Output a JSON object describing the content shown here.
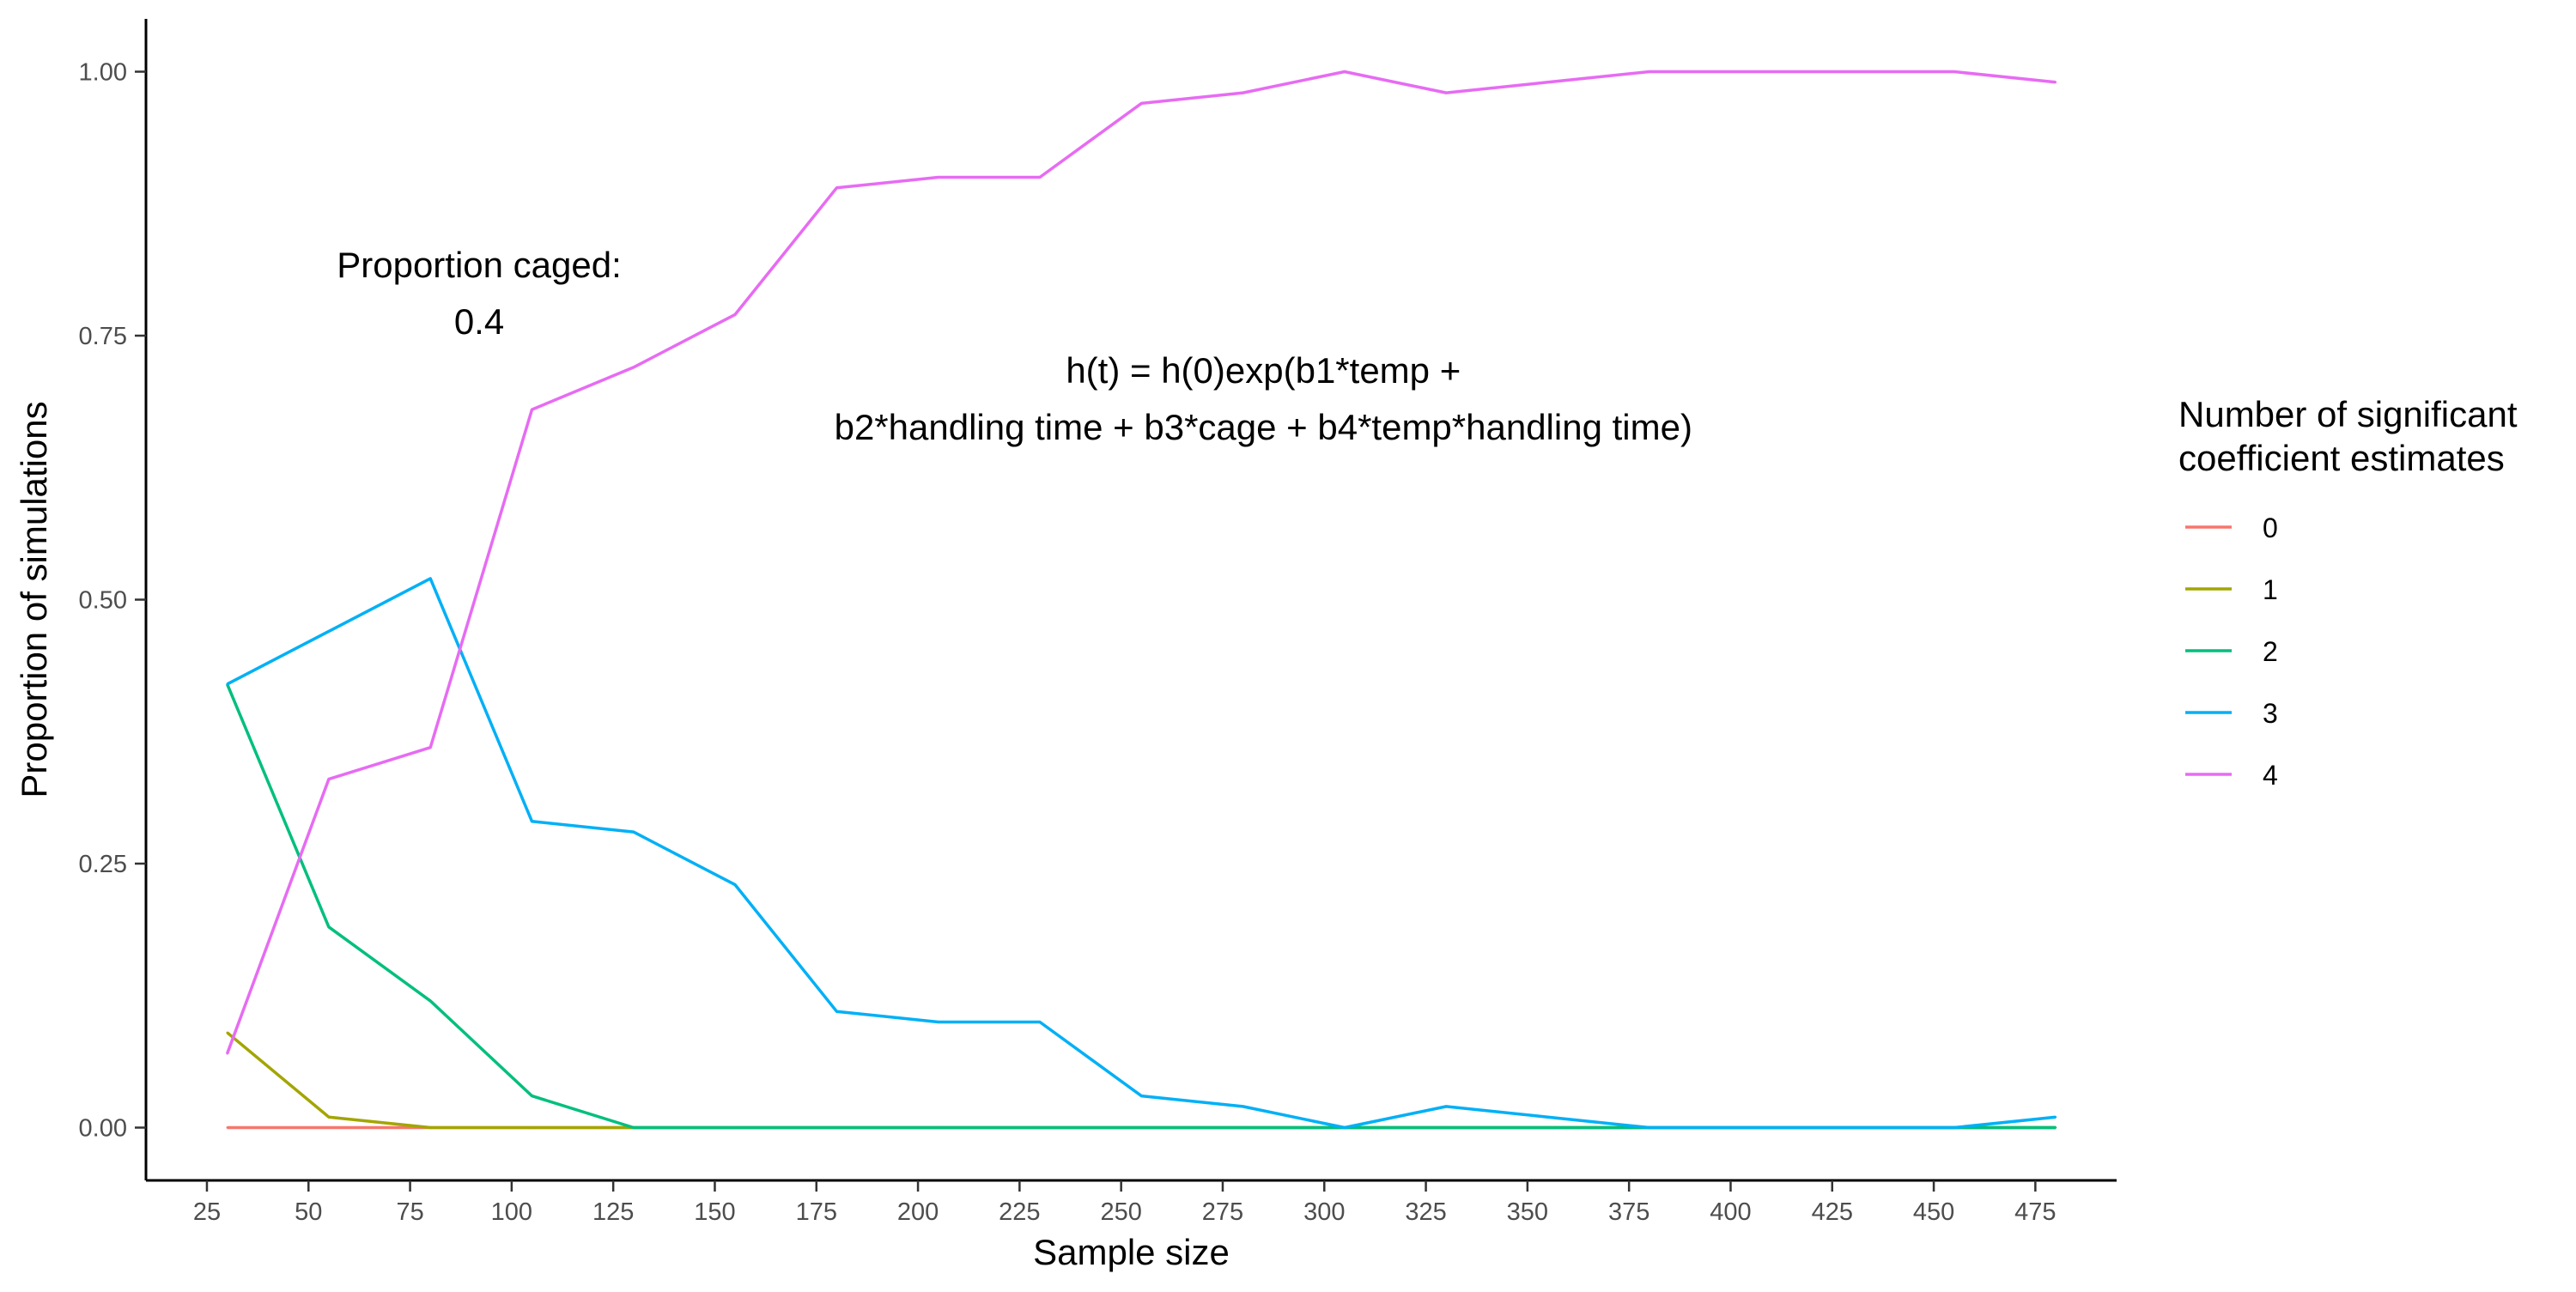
{
  "chart_data": {
    "type": "line",
    "xlabel": "Sample size",
    "ylabel": "Proportion of simulations",
    "xlim": [
      10,
      495
    ],
    "ylim": [
      -0.05,
      1.05
    ],
    "x_ticks": [
      25,
      50,
      75,
      100,
      125,
      150,
      175,
      200,
      225,
      250,
      275,
      300,
      325,
      350,
      375,
      400,
      425,
      450,
      475
    ],
    "y_ticks": [
      0,
      0.25,
      0.5,
      0.75,
      1.0
    ],
    "y_tick_labels": [
      "0.00",
      "0.25",
      "0.50",
      "0.75",
      "1.00"
    ],
    "grid": false,
    "legend_position": "right",
    "legend_title": [
      "Number of significant",
      "coefficient estimates"
    ],
    "annotations": [
      {
        "lines": [
          "Proportion caged:",
          "0.4"
        ],
        "x": 92,
        "y": 0.79
      },
      {
        "lines": [
          "h(t) = h(0)exp(b1*temp +",
          "b2*handling time + b3*cage + b4*temp*handling time)"
        ],
        "x": 285,
        "y": 0.69
      }
    ],
    "x": [
      30,
      55,
      80,
      105,
      130,
      155,
      180,
      205,
      230,
      255,
      280,
      305,
      330,
      355,
      380,
      405,
      430,
      455,
      480
    ],
    "series": [
      {
        "name": "0",
        "color": "#F8766D",
        "values": [
          0,
          0,
          0,
          0,
          0,
          0,
          0,
          0,
          0,
          0,
          0,
          0,
          0,
          0,
          0,
          0,
          0,
          0,
          0
        ]
      },
      {
        "name": "1",
        "color": "#A3A500",
        "values": [
          0.09,
          0.01,
          0,
          0,
          0,
          0,
          0,
          0,
          0,
          0,
          0,
          0,
          0,
          0,
          0,
          0,
          0,
          0,
          0
        ]
      },
      {
        "name": "2",
        "color": "#00BF7D",
        "values": [
          0.42,
          0.19,
          0.12,
          0.03,
          0,
          0,
          0,
          0,
          0,
          0,
          0,
          0,
          0,
          0,
          0,
          0,
          0,
          0,
          0
        ]
      },
      {
        "name": "3",
        "color": "#00B0F6",
        "values": [
          0.42,
          0.47,
          0.52,
          0.29,
          0.28,
          0.23,
          0.11,
          0.1,
          0.1,
          0.03,
          0.02,
          0,
          0.02,
          0.01,
          0,
          0,
          0,
          0,
          0.01
        ]
      },
      {
        "name": "4",
        "color": "#E76BF3",
        "values": [
          0.07,
          0.33,
          0.36,
          0.68,
          0.72,
          0.77,
          0.89,
          0.9,
          0.9,
          0.97,
          0.98,
          1.0,
          0.98,
          0.99,
          1.0,
          1.0,
          1.0,
          1.0,
          0.99
        ]
      }
    ]
  }
}
